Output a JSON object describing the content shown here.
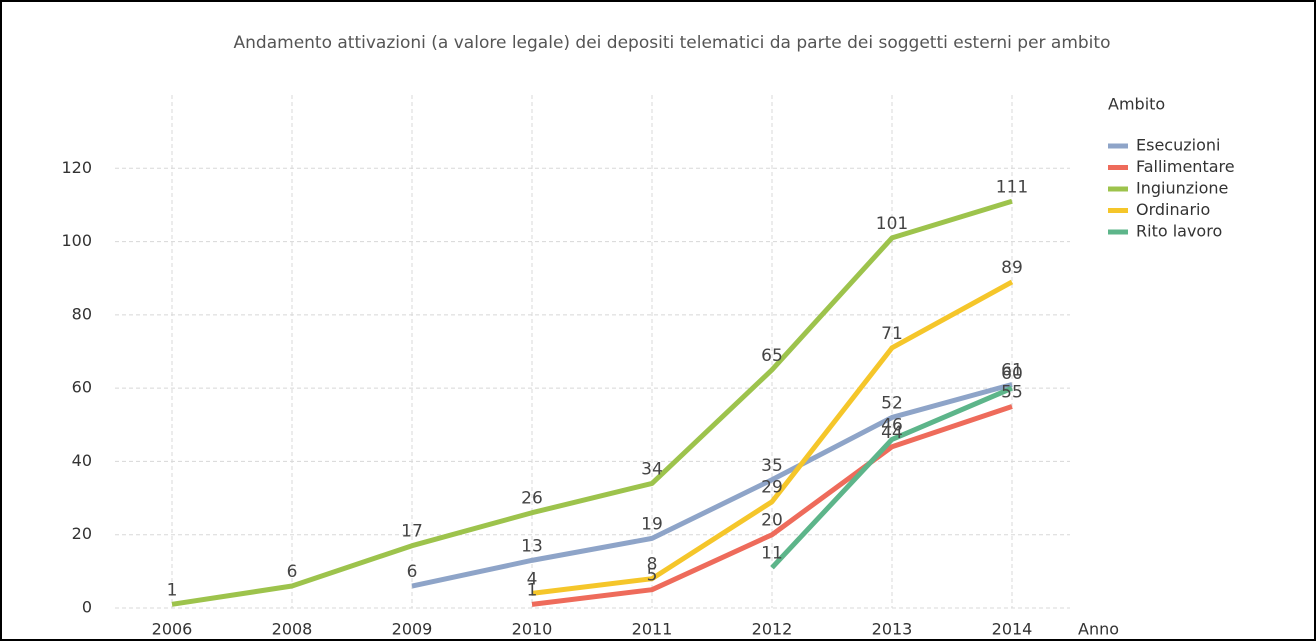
{
  "chart_data": {
    "type": "line",
    "title": "Andamento attivazioni (a valore legale) dei depositi telematici da parte dei soggetti esterni per ambito",
    "x_label": "Anno",
    "legend_title": "Ambito",
    "legend": "right",
    "grid": true,
    "categories": [
      "2006",
      "2008",
      "2009",
      "2010",
      "2011",
      "2012",
      "2013",
      "2014"
    ],
    "ylim": [
      0,
      140
    ],
    "yticks": [
      0,
      20,
      40,
      60,
      80,
      100,
      120
    ],
    "series": [
      {
        "name": "Esecuzioni",
        "color": "#8ea4c8",
        "values": [
          null,
          null,
          6,
          13,
          19,
          35,
          52,
          61
        ]
      },
      {
        "name": "Fallimentare",
        "color": "#ee6b5b",
        "values": [
          null,
          null,
          null,
          1,
          5,
          20,
          44,
          55
        ]
      },
      {
        "name": "Ingiunzione",
        "color": "#9dc34c",
        "values": [
          1,
          6,
          17,
          26,
          34,
          65,
          101,
          111
        ]
      },
      {
        "name": "Ordinario",
        "color": "#f5c62a",
        "values": [
          null,
          null,
          null,
          4,
          8,
          29,
          71,
          89
        ]
      },
      {
        "name": "Rito lavoro",
        "color": "#5db58a",
        "values": [
          null,
          null,
          null,
          null,
          null,
          11,
          46,
          60
        ]
      }
    ]
  }
}
